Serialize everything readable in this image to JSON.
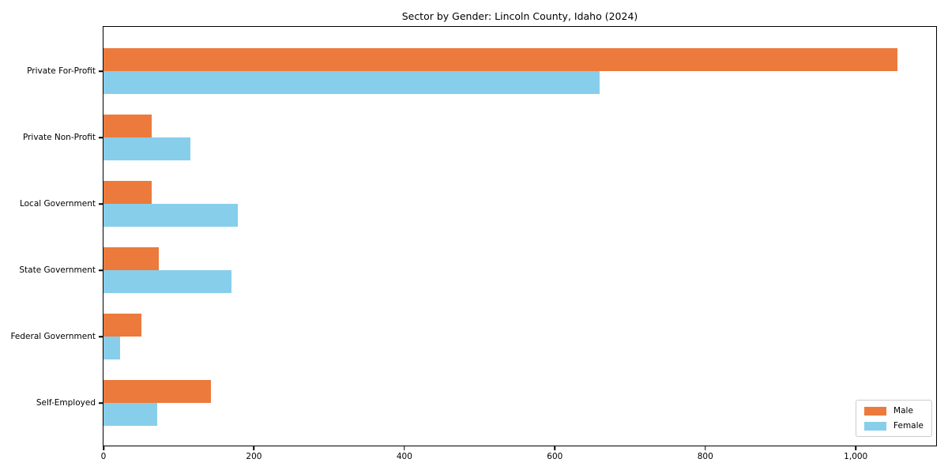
{
  "chart_data": {
    "type": "bar",
    "orientation": "horizontal",
    "title": "Sector by Gender: Lincoln County, Idaho (2024)",
    "xlabel": "",
    "ylabel": "",
    "categories": [
      "Private For-Profit",
      "Private Non-Profit",
      "Local Government",
      "State Government",
      "Federal Government",
      "Self-Employed"
    ],
    "series": [
      {
        "name": "Male",
        "color": "#ec7a3c",
        "values": [
          1055,
          64,
          64,
          74,
          50,
          143
        ]
      },
      {
        "name": "Female",
        "color": "#87ceeb",
        "values": [
          659,
          115,
          179,
          170,
          22,
          71
        ]
      }
    ],
    "xlim": [
      0,
      1109
    ],
    "x_ticks": [
      0,
      200,
      400,
      600,
      800,
      1000
    ],
    "x_tick_labels": [
      "0",
      "200",
      "400",
      "600",
      "800",
      "1,000"
    ],
    "grid": false,
    "legend": {
      "position": "lower right",
      "items": [
        "Male",
        "Female"
      ]
    }
  }
}
